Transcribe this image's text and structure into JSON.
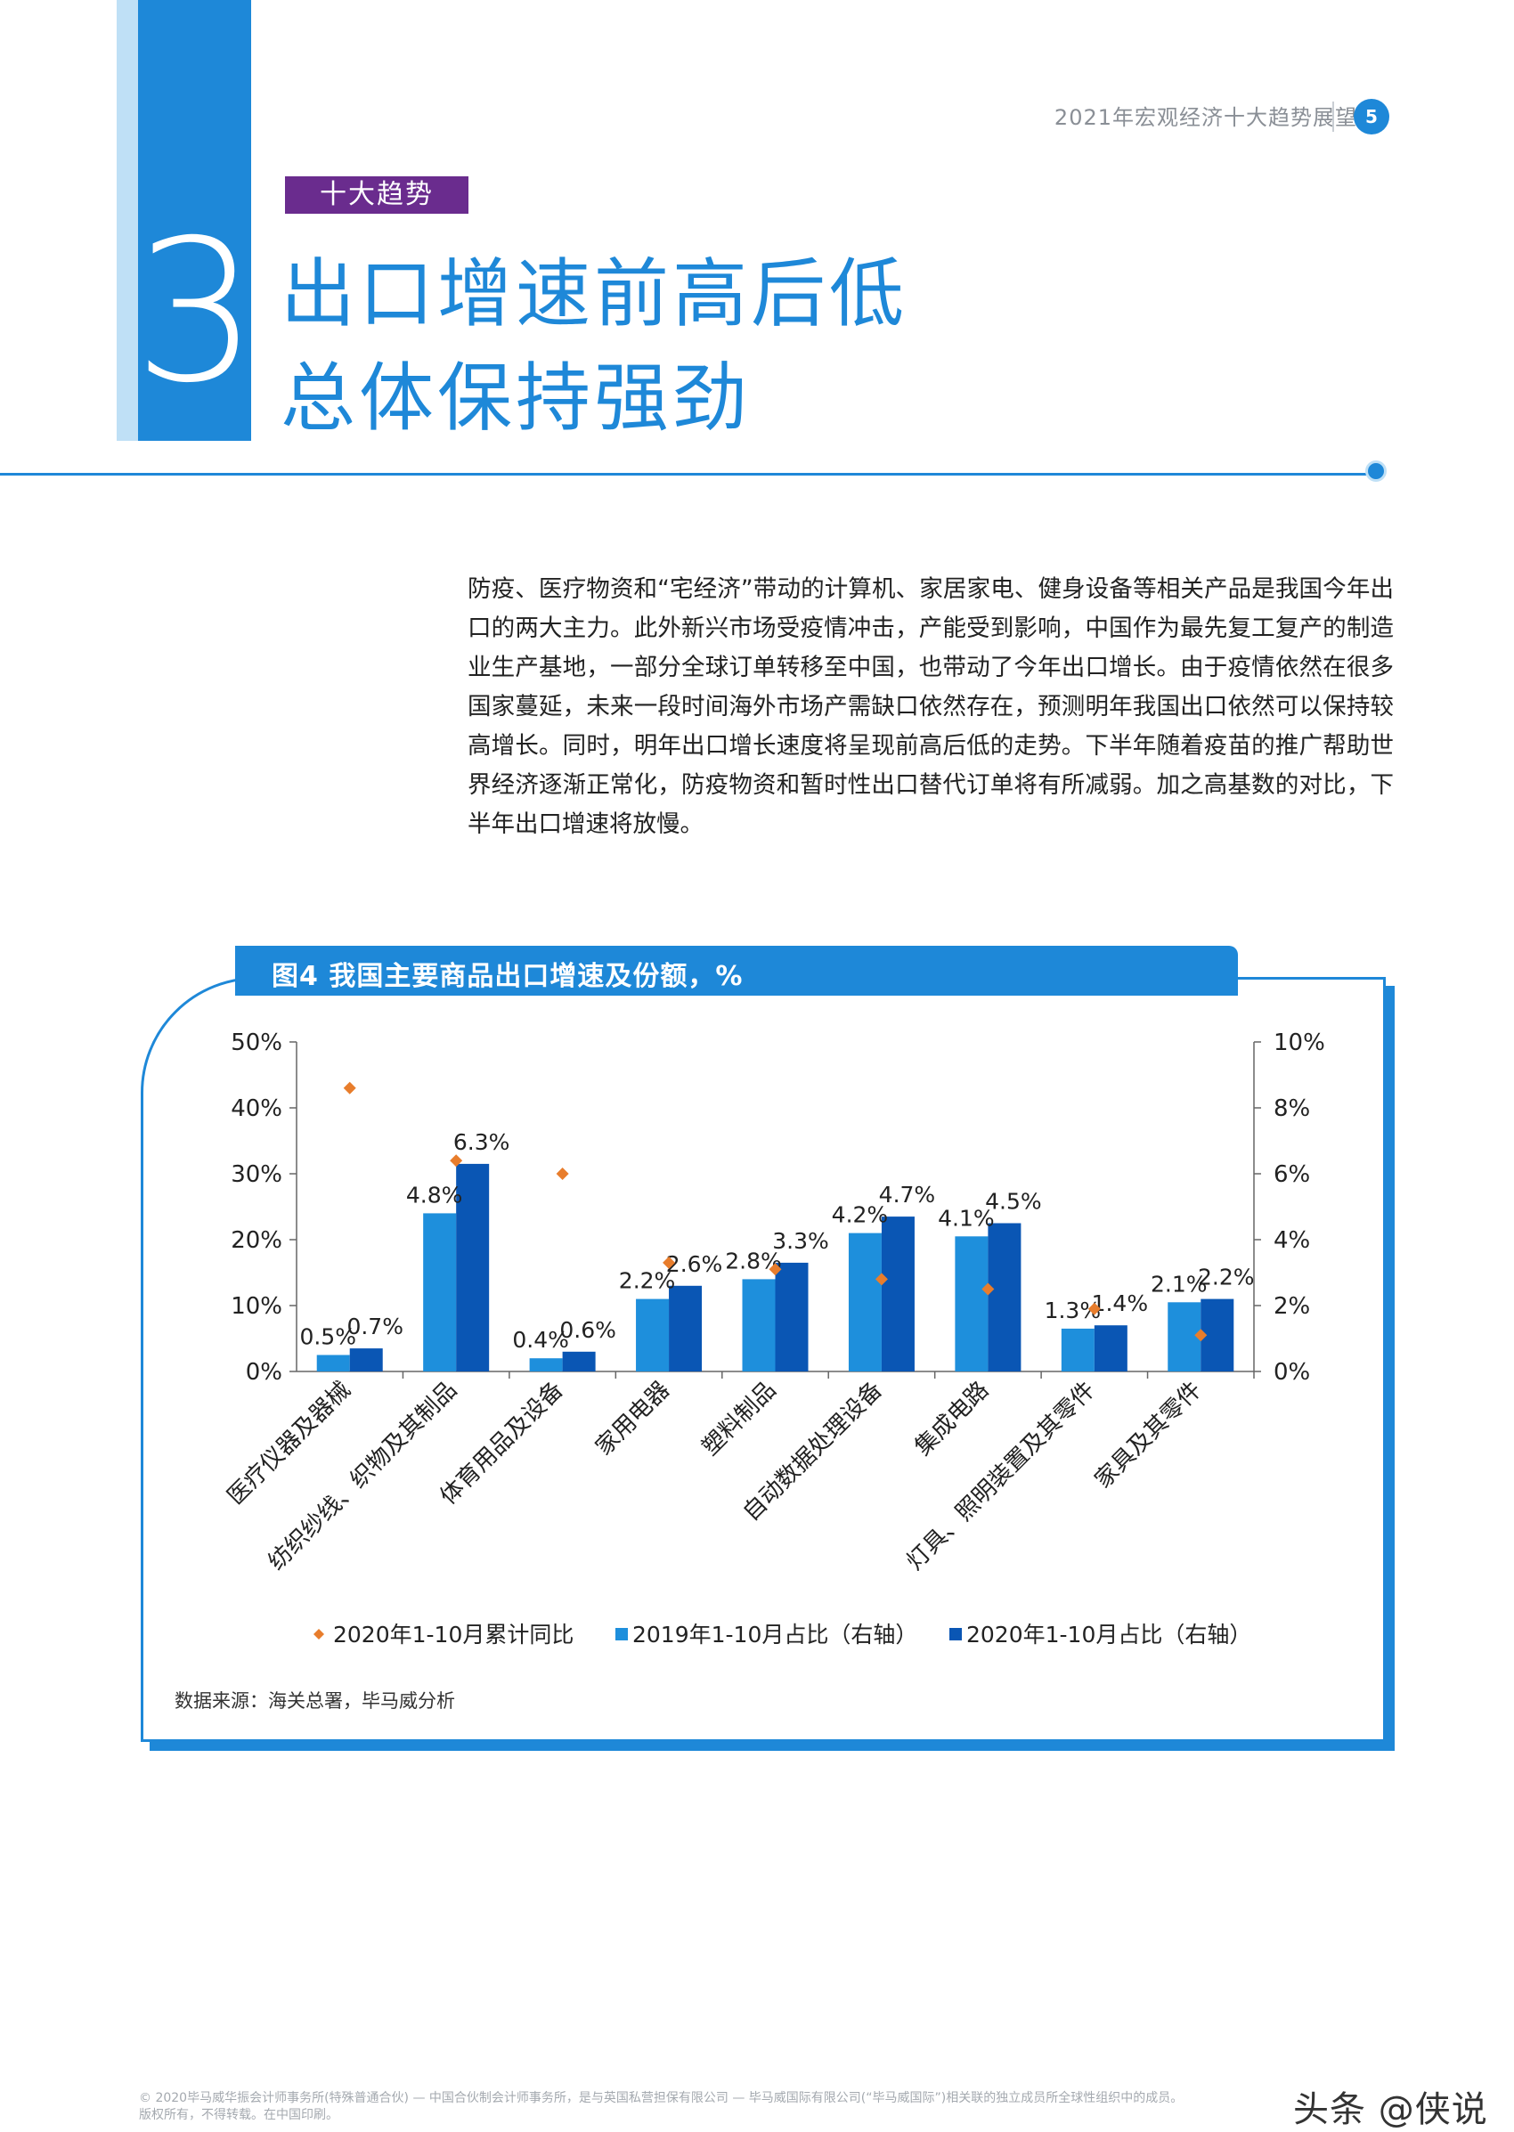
{
  "header": {
    "doc_title": "2021年宏观经济十大趋势展望",
    "page_number": "5"
  },
  "section": {
    "tag": "十大趋势",
    "number": "3",
    "headline_line1": "出口增速前高后低",
    "headline_line2": "总体保持强劲"
  },
  "body": {
    "paragraph": "防疫、医疗物资和“宅经济”带动的计算机、家居家电、健身设备等相关产品是我国今年出口的两大主力。此外新兴市场受疫情冲击，产能受到影响，中国作为最先复工复产的制造业生产基地，一部分全球订单转移至中国，也带动了今年出口增长。由于疫情依然在很多国家蔓延，未来一段时间海外市场产需缺口依然存在，预测明年我国出口依然可以保持较高增长。同时，明年出口增长速度将呈现前高后低的走势。下半年随着疫苗的推广帮助世界经济逐渐正常化，防疫物资和暂时性出口替代订单将有所减弱。加之高基数的对比，下半年出口增速将放慢。"
  },
  "figure": {
    "title": "图4 我国主要商品出口增速及份额，%",
    "source": "数据来源：海关总署，毕马威分析"
  },
  "chart_data": {
    "type": "bar",
    "categories": [
      "医疗仪器及器械",
      "纺织纱线、织物及其制品",
      "体育用品及设备",
      "家用电器",
      "塑料制品",
      "自动数据处理设备",
      "集成电路",
      "灯具、照明装置及其零件",
      "家具及其零件"
    ],
    "series": [
      {
        "name": "2020年1-10月累计同比",
        "axis": "left",
        "marker": "diamond",
        "color": "#e87d2c",
        "values": [
          43,
          32,
          30,
          16.5,
          15.5,
          14,
          12.5,
          9.5,
          5.5
        ]
      },
      {
        "name": "2019年1-10月占比（右轴）",
        "axis": "right",
        "color": "#1e8fdc",
        "values": [
          0.5,
          4.8,
          0.4,
          2.2,
          2.8,
          4.2,
          4.1,
          1.3,
          2.1
        ],
        "labels": [
          "0.5%",
          "4.8%",
          "0.4%",
          "2.2%",
          "2.8%",
          "4.2%",
          "4.1%",
          "1.3%",
          "2.1%"
        ]
      },
      {
        "name": "2020年1-10月占比（右轴）",
        "axis": "right",
        "color": "#0a56b4",
        "values": [
          0.7,
          6.3,
          0.6,
          2.6,
          3.3,
          4.7,
          4.5,
          1.4,
          2.2
        ],
        "labels": [
          "0.7%",
          "6.3%",
          "0.6%",
          "2.6%",
          "3.3%",
          "4.7%",
          "4.5%",
          "1.4%",
          "2.2%"
        ]
      }
    ],
    "y_left": {
      "ylim": [
        0,
        50
      ],
      "ticks": [
        "0%",
        "10%",
        "20%",
        "30%",
        "40%",
        "50%"
      ]
    },
    "y_right": {
      "ylim": [
        0,
        10
      ],
      "ticks": [
        "0%",
        "2%",
        "4%",
        "6%",
        "8%",
        "10%"
      ]
    },
    "legend_position": "bottom",
    "grid": false
  },
  "footer": {
    "line1": "© 2020毕马威华振会计师事务所(特殊普通合伙) — 中国合伙制会计师事务所，是与英国私营担保有限公司 — 毕马威国际有限公司(“毕马威国际”)相关联的独立成员所全球性组织中的成员。",
    "line2": "版权所有，不得转载。在中国印刷。",
    "watermark": "头条 @侠说"
  }
}
